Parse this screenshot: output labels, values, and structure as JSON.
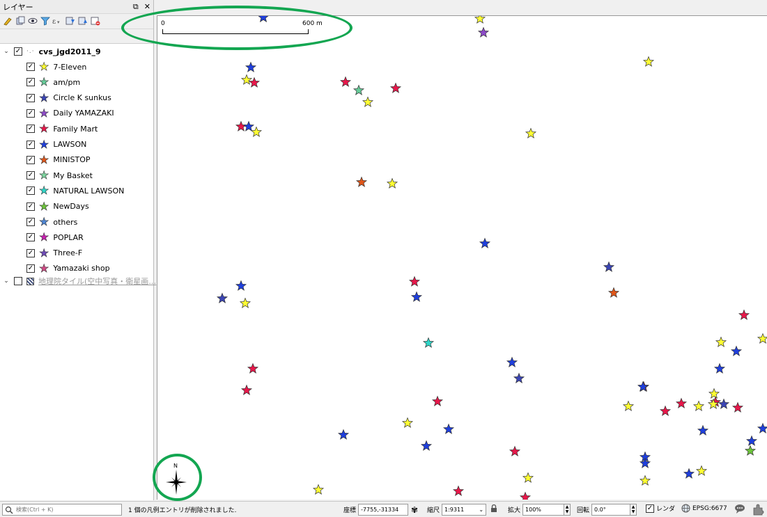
{
  "panel": {
    "title": "レイヤー",
    "float_glyph": "⧉",
    "close_glyph": "✕",
    "toolbar_icons": [
      "style-manager-icon",
      "add-group-icon",
      "manage-visibility-icon",
      "filter-legend-icon",
      "filter-expression-icon",
      "expand-all-icon",
      "collapse-all-icon",
      "remove-layer-icon"
    ]
  },
  "layer_tree": {
    "group": {
      "name": "cvs_jgd2011_9",
      "expanded_glyph": "⌄",
      "checked": true
    },
    "layers": [
      {
        "label": "7-Eleven",
        "color": "#ffff33"
      },
      {
        "label": "am/pm",
        "color": "#66cc99"
      },
      {
        "label": "Circle K sunkus",
        "color": "#3b45b5"
      },
      {
        "label": "Daily YAMAZAKI",
        "color": "#8e4bc9"
      },
      {
        "label": "Family Mart",
        "color": "#e8174a"
      },
      {
        "label": "LAWSON",
        "color": "#1f3fdd"
      },
      {
        "label": "MINISTOP",
        "color": "#e0561a"
      },
      {
        "label": "My Basket",
        "color": "#7ed6a0"
      },
      {
        "label": "NATURAL LAWSON",
        "color": "#2fd6c8"
      },
      {
        "label": "NewDays",
        "color": "#6cc43a"
      },
      {
        "label": "others",
        "color": "#4e86d4"
      },
      {
        "label": "POPLAR",
        "color": "#c81fb0"
      },
      {
        "label": "Three-F",
        "color": "#6e4ab8"
      },
      {
        "label": "Yamazaki shop",
        "color": "#d24a86"
      }
    ],
    "raster": {
      "label": "地理院タイル(空中写真・衛星画…",
      "checked": false
    }
  },
  "map": {
    "scale_start": "0",
    "scale_end": "600 m",
    "north_label": "N",
    "highlight_color": "#13a651",
    "stores": [
      {
        "kind": "Three-F",
        "color": "#6e4ab8"
      },
      {
        "kind": "7-Eleven",
        "color": "#ffff33"
      },
      {
        "kind": "Daily YAMAZAKI",
        "color": "#8e4bc9"
      },
      {
        "kind": "7-Eleven",
        "color": "#ffff33"
      },
      {
        "kind": "LAWSON",
        "color": "#1f3fdd"
      },
      {
        "kind": "7-Eleven",
        "color": "#ffff33"
      },
      {
        "kind": "Family Mart",
        "color": "#e8174a"
      },
      {
        "kind": "Family Mart",
        "color": "#e8174a"
      },
      {
        "kind": "am/pm",
        "color": "#66cc99"
      },
      {
        "kind": "Family Mart",
        "color": "#e8174a"
      },
      {
        "kind": "7-Eleven",
        "color": "#ffff33"
      },
      {
        "kind": "7-Eleven",
        "color": "#ffff33"
      },
      {
        "kind": "Family Mart",
        "color": "#e8174a"
      },
      {
        "kind": "LAWSON",
        "color": "#1f3fdd"
      },
      {
        "kind": "7-Eleven",
        "color": "#ffff33"
      },
      {
        "kind": "MINISTOP",
        "color": "#e0561a"
      },
      {
        "kind": "7-Eleven",
        "color": "#ffff33"
      },
      {
        "kind": "LAWSON",
        "color": "#1f3fdd"
      },
      {
        "kind": "Circle K sunkus",
        "color": "#3b45b5"
      },
      {
        "kind": "MINISTOP",
        "color": "#e0561a"
      },
      {
        "kind": "LAWSON",
        "color": "#1f3fdd"
      },
      {
        "kind": "Circle K sunkus",
        "color": "#3b45b5"
      },
      {
        "kind": "7-Eleven",
        "color": "#ffff33"
      },
      {
        "kind": "Family Mart",
        "color": "#e8174a"
      },
      {
        "kind": "LAWSON",
        "color": "#1f3fdd"
      },
      {
        "kind": "Family Mart",
        "color": "#e8174a"
      },
      {
        "kind": "7-Eleven",
        "color": "#ffff33"
      },
      {
        "kind": "7-Eleven",
        "color": "#ffff33"
      },
      {
        "kind": "LAWSON",
        "color": "#1f3fdd"
      },
      {
        "kind": "NATURAL LAWSON",
        "color": "#2fd6c8"
      },
      {
        "kind": "LAWSON",
        "color": "#1f3fdd"
      },
      {
        "kind": "LAWSON",
        "color": "#1f3fdd"
      },
      {
        "kind": "Circle K sunkus",
        "color": "#3b45b5"
      },
      {
        "kind": "Family Mart",
        "color": "#e8174a"
      },
      {
        "kind": "Family Mart",
        "color": "#e8174a"
      },
      {
        "kind": "Family Mart",
        "color": "#e8174a"
      },
      {
        "kind": "Family Mart",
        "color": "#e8174a"
      },
      {
        "kind": "7-Eleven",
        "color": "#ffff33"
      },
      {
        "kind": "LAWSON",
        "color": "#1f3fdd"
      },
      {
        "kind": "LAWSON",
        "color": "#1f3fdd"
      },
      {
        "kind": "LAWSON",
        "color": "#1f3fdd"
      },
      {
        "kind": "7-Eleven",
        "color": "#ffff33"
      },
      {
        "kind": "LAWSON",
        "color": "#1f3fdd"
      },
      {
        "kind": "Family Mart",
        "color": "#e8174a"
      },
      {
        "kind": "Family Mart",
        "color": "#e8174a"
      },
      {
        "kind": "7-Eleven",
        "color": "#ffff33"
      },
      {
        "kind": "Family Mart",
        "color": "#e8174a"
      },
      {
        "kind": "7-Eleven",
        "color": "#ffff33"
      },
      {
        "kind": "7-Eleven",
        "color": "#ffff33"
      },
      {
        "kind": "Circle K sunkus",
        "color": "#3b45b5"
      },
      {
        "kind": "Family Mart",
        "color": "#e8174a"
      },
      {
        "kind": "LAWSON",
        "color": "#1f3fdd"
      },
      {
        "kind": "LAWSON",
        "color": "#1f3fdd"
      },
      {
        "kind": "LAWSON",
        "color": "#1f3fdd"
      },
      {
        "kind": "NewDays",
        "color": "#6cc43a"
      },
      {
        "kind": "Family Mart",
        "color": "#e8174a"
      },
      {
        "kind": "LAWSON",
        "color": "#1f3fdd"
      },
      {
        "kind": "LAWSON",
        "color": "#1f3fdd"
      },
      {
        "kind": "LAWSON",
        "color": "#1f3fdd"
      },
      {
        "kind": "7-Eleven",
        "color": "#ffff33"
      },
      {
        "kind": "7-Eleven",
        "color": "#ffff33"
      },
      {
        "kind": "7-Eleven",
        "color": "#ffff33"
      },
      {
        "kind": "7-Eleven",
        "color": "#ffff33"
      },
      {
        "kind": "Family Mart",
        "color": "#e8174a"
      },
      {
        "kind": "Family Mart",
        "color": "#e8174a"
      },
      {
        "kind": "LAWSON",
        "color": "#1f3fdd"
      }
    ]
  },
  "status_bar": {
    "search_placeholder": "検索(Ctrl + K)",
    "message": "1 個の凡例エントリが削除されました.",
    "coord_label": "座標",
    "coord_value": "-7755,-31334",
    "scale_label": "縮尺",
    "scale_value": "1:9311",
    "magnifier_label": "拡大",
    "magnifier_value": "100%",
    "rotation_label": "回転",
    "rotation_value": "0.0°",
    "render_label": "レンダ",
    "crs": "EPSG:6677"
  }
}
